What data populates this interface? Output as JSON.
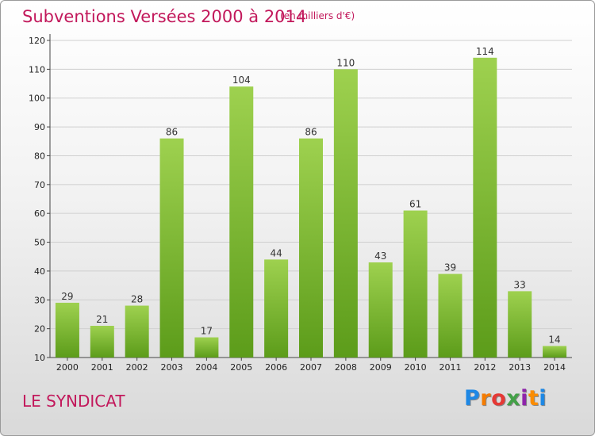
{
  "header": {
    "title": "Subventions Versées 2000 à 2014",
    "unit": "(en milliers d'€)"
  },
  "footer": {
    "commune": "LE SYNDICAT",
    "logo_letters": [
      "P",
      "r",
      "o",
      "x",
      "i",
      "t",
      "i"
    ],
    "logo_colors": [
      "#1e88e5",
      "#f57c00",
      "#e53935",
      "#43a047",
      "#8e24aa",
      "#fb8c00",
      "#1e88e5"
    ]
  },
  "colors": {
    "bar_top": "#9ed14f",
    "bar_bottom": "#5c9c1a",
    "accent": "#c2185b"
  },
  "chart_data": {
    "type": "bar",
    "title": "Subventions Versées 2000 à 2014",
    "subtitle": "(en milliers d'€)",
    "xlabel": "",
    "ylabel": "",
    "categories": [
      "2000",
      "2001",
      "2002",
      "2003",
      "2004",
      "2005",
      "2006",
      "2007",
      "2008",
      "2009",
      "2010",
      "2011",
      "2012",
      "2013",
      "2014"
    ],
    "values": [
      29,
      21,
      28,
      86,
      17,
      104,
      44,
      86,
      110,
      43,
      61,
      39,
      114,
      33,
      14
    ],
    "ylim": [
      10,
      120
    ],
    "yticks": [
      10,
      20,
      30,
      40,
      50,
      60,
      70,
      80,
      90,
      100,
      110,
      120
    ],
    "grid": true,
    "data_labels": true,
    "legend": "none"
  }
}
